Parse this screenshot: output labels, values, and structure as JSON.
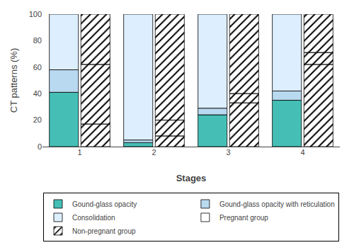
{
  "chart_data": {
    "type": "bar",
    "stacked": true,
    "xlabel": "Stages",
    "ylabel": "CT patterns (%)",
    "categories": [
      "1",
      "2",
      "3",
      "4"
    ],
    "ylim": [
      0,
      100
    ],
    "yticks": [
      0,
      20,
      40,
      60,
      80,
      100
    ],
    "grid": false,
    "legend": "bottom",
    "groups": [
      {
        "name": "Pregnant group",
        "color": "white",
        "marker": "solid",
        "series": [
          {
            "name": "Gound-glass opacity",
            "color": "#45bfb5",
            "values": [
              41,
              3,
              24,
              35
            ]
          },
          {
            "name": "Gound-glass opacity with reticulation",
            "color": "#b8d9f0",
            "values": [
              17,
              2,
              5,
              7
            ]
          },
          {
            "name": "Consolidation",
            "color": "#ddeeff",
            "values": [
              42,
              95,
              71,
              58
            ]
          }
        ]
      },
      {
        "name": "Non-pregnant group",
        "color": "white",
        "marker": "hatched",
        "series": [
          {
            "name": "Gound-glass opacity",
            "color": "#45bfb5",
            "values": [
              17,
              8,
              33,
              62
            ]
          },
          {
            "name": "Gound-glass opacity with reticulation",
            "color": "#b8d9f0",
            "values": [
              45,
              12,
              7,
              9
            ]
          },
          {
            "name": "Consolidation",
            "color": "#ddeeff",
            "values": [
              38,
              80,
              60,
              29
            ]
          }
        ]
      }
    ]
  }
}
